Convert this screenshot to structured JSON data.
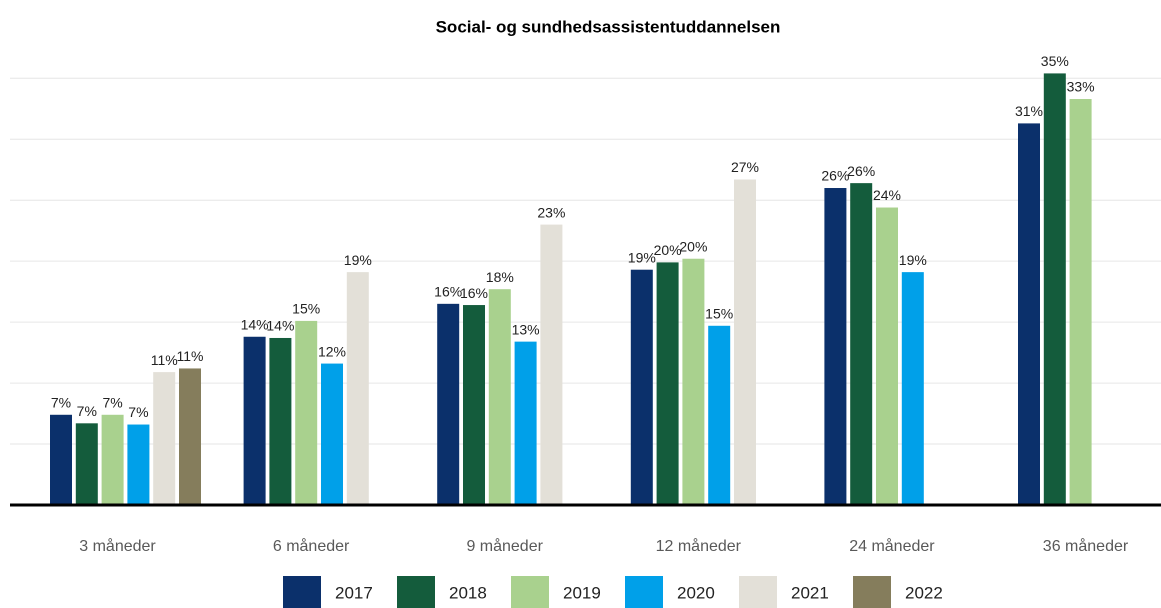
{
  "chart_data": {
    "type": "bar",
    "title": "Social- og sundhedsassistentuddannelsen",
    "categories": [
      "3 måneder",
      "6 måneder",
      "9 måneder",
      "12 måneder",
      "24 måneder",
      "36 måneder"
    ],
    "series": [
      {
        "name": "2017",
        "color": "#0b306b",
        "values": [
          7.4,
          13.8,
          16.5,
          19.3,
          26.0,
          31.3
        ],
        "value_labels": [
          "7%",
          "14%",
          "16%",
          "19%",
          "26%",
          "31%"
        ]
      },
      {
        "name": "2018",
        "color": "#145c3c",
        "values": [
          6.7,
          13.7,
          16.4,
          19.9,
          26.4,
          35.4
        ],
        "value_labels": [
          "7%",
          "14%",
          "16%",
          "20%",
          "26%",
          "35%"
        ]
      },
      {
        "name": "2019",
        "color": "#a9d18e",
        "values": [
          7.4,
          15.1,
          17.7,
          20.2,
          24.4,
          33.3
        ],
        "value_labels": [
          "7%",
          "15%",
          "18%",
          "20%",
          "24%",
          "33%"
        ]
      },
      {
        "name": "2020",
        "color": "#00a0e9",
        "values": [
          6.6,
          11.6,
          13.4,
          14.7,
          19.1,
          null
        ],
        "value_labels": [
          "7%",
          "12%",
          "13%",
          "15%",
          "19%",
          null
        ]
      },
      {
        "name": "2021",
        "color": "#e3e0d8",
        "values": [
          10.9,
          19.1,
          23.0,
          26.7,
          null,
          null
        ],
        "value_labels": [
          "11%",
          "19%",
          "23%",
          "27%",
          null,
          null
        ]
      },
      {
        "name": "2022",
        "color": "#857d5c",
        "values": [
          11.2,
          null,
          null,
          null,
          null,
          null
        ],
        "value_labels": [
          "11%",
          null,
          null,
          null,
          null,
          null
        ]
      }
    ],
    "ylim": [
      0,
      36.5
    ],
    "yticks": [
      0,
      5,
      10,
      15,
      20,
      25,
      30,
      35
    ],
    "grid": true
  }
}
